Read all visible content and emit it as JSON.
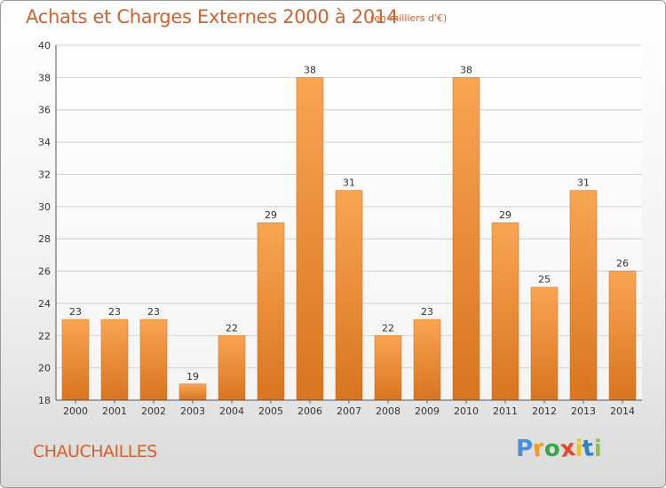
{
  "header": {
    "title": "Achats et Charges Externes 2000 à 2014",
    "unit": "(en milliers d'€)"
  },
  "footer": {
    "commune": "CHAUCHAILLES",
    "logo_text": "Proxiti"
  },
  "colors": {
    "accent": "#d4602a",
    "bar_light": "#f8a552",
    "bar_dark": "#d9741f",
    "grid": "#d0d0d0"
  },
  "chart_data": {
    "type": "bar",
    "title": "Achats et Charges Externes 2000 à 2014",
    "subtitle": "(en milliers d'€)",
    "categories": [
      "2000",
      "2001",
      "2002",
      "2003",
      "2004",
      "2005",
      "2006",
      "2007",
      "2008",
      "2009",
      "2010",
      "2011",
      "2012",
      "2013",
      "2014"
    ],
    "values": [
      23,
      23,
      23,
      19,
      22,
      29,
      38,
      31,
      22,
      23,
      38,
      29,
      25,
      31,
      26
    ],
    "ylim": [
      18,
      40
    ],
    "yticks": [
      18,
      20,
      22,
      24,
      26,
      28,
      30,
      32,
      34,
      36,
      38,
      40
    ],
    "grid": true,
    "legend": "none",
    "data_labels": true
  }
}
